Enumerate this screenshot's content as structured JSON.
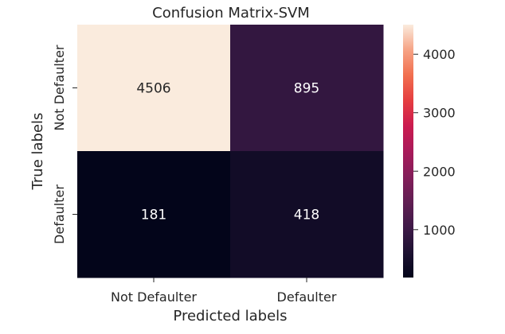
{
  "chart_data": {
    "type": "heatmap",
    "title": "Confusion Matrix-SVM",
    "xlabel": "Predicted labels",
    "ylabel": "True labels",
    "x_categories": [
      "Not Defaulter",
      "Defaulter"
    ],
    "y_categories": [
      "Not Defaulter",
      "Defaulter"
    ],
    "values": [
      [
        4506,
        895
      ],
      [
        181,
        418
      ]
    ],
    "colorbar": {
      "min": 181,
      "max": 4506,
      "ticks": [
        1000,
        2000,
        3000,
        4000
      ]
    },
    "colormap": "rocket",
    "grid": false
  }
}
